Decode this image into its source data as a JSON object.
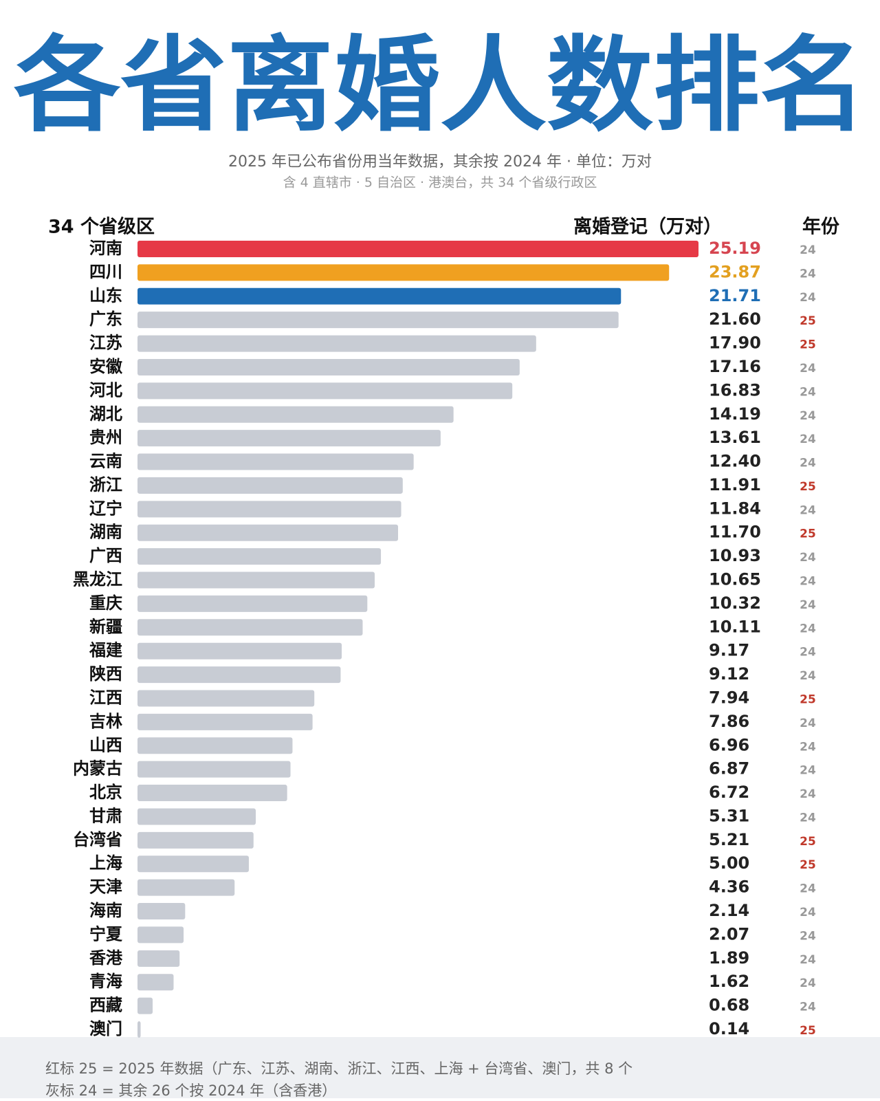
{
  "chart_data": {
    "type": "bar",
    "title": "各省离婚人数排名",
    "subtitle": "2025 年已公布省份用当年数据，其余按 2024 年 · 单位：万对",
    "subtitle2": "含 4 直辖市 · 5 自治区 · 港澳台，共 34 个省级行政区",
    "category_header": "34 个省级区",
    "value_header": "离婚登记（万对）",
    "year_header": "年份",
    "categories": [
      "河南",
      "四川",
      "山东",
      "广东",
      "江苏",
      "安徽",
      "河北",
      "湖北",
      "贵州",
      "云南",
      "浙江",
      "辽宁",
      "湖南",
      "广西",
      "黑龙江",
      "重庆",
      "新疆",
      "福建",
      "陕西",
      "江西",
      "吉林",
      "山西",
      "内蒙古",
      "北京",
      "甘肃",
      "台湾省",
      "上海",
      "天津",
      "海南",
      "宁夏",
      "香港",
      "青海",
      "西藏",
      "澳门"
    ],
    "values": [
      25.19,
      23.87,
      21.71,
      21.6,
      17.9,
      17.16,
      16.83,
      14.19,
      13.61,
      12.4,
      11.91,
      11.84,
      11.7,
      10.93,
      10.65,
      10.32,
      10.11,
      9.17,
      9.12,
      7.94,
      7.86,
      6.96,
      6.87,
      6.72,
      5.31,
      5.21,
      5.0,
      4.36,
      2.14,
      2.07,
      1.89,
      1.62,
      0.68,
      0.14
    ],
    "value_labels": [
      "25.19",
      "23.87",
      "21.71",
      "21.60",
      "17.90",
      "17.16",
      "16.83",
      "14.19",
      "13.61",
      "12.40",
      "11.91",
      "11.84",
      "11.70",
      "10.93",
      "10.65",
      "10.32",
      "10.11",
      "9.17",
      "9.12",
      "7.94",
      "7.86",
      "6.96",
      "6.87",
      "6.72",
      "5.31",
      "5.21",
      "5.00",
      "4.36",
      "2.14",
      "2.07",
      "1.89",
      "1.62",
      "0.68",
      "0.14"
    ],
    "years": [
      "24",
      "24",
      "24",
      "25",
      "25",
      "24",
      "24",
      "24",
      "24",
      "24",
      "25",
      "24",
      "25",
      "24",
      "24",
      "24",
      "24",
      "24",
      "24",
      "25",
      "24",
      "24",
      "24",
      "24",
      "24",
      "25",
      "25",
      "24",
      "24",
      "24",
      "24",
      "24",
      "24",
      "25"
    ],
    "colors": [
      "#e63946",
      "#f0a020",
      "#1f6eb5"
    ],
    "default_color": "#c8ccd4",
    "label_colors": [
      "#d64550",
      "#e3a020",
      "#1f6eb5"
    ],
    "default_label_color": "#222222",
    "year_colors": {
      "24": "#999999",
      "25": "#c0392b"
    },
    "footnotes": [
      "红标 25 = 2025 年数据（广东、江苏、湖南、浙江、江西、上海 + 台湾省、澳门，共 8 个",
      "灰标 24 = 其余 26 个按 2024 年（含香港）"
    ]
  }
}
